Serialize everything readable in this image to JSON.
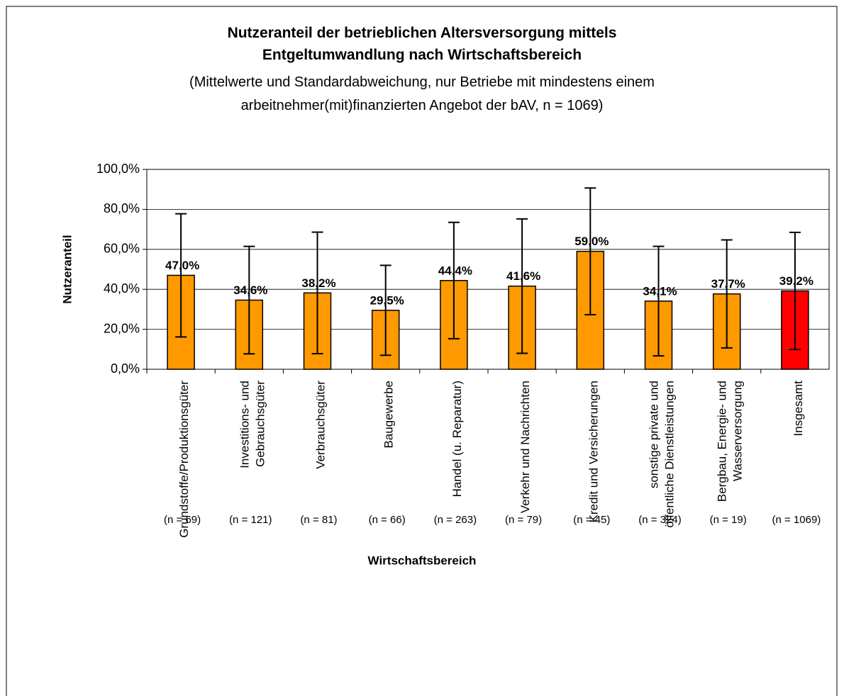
{
  "chart_data": {
    "type": "bar",
    "title": "Nutzeranteil der betrieblichen Altersversorgung mittels\nEntgeltumwandlung nach Wirtschaftsbereich",
    "subtitle": "(Mittelwerte und Standardabweichung, nur Betriebe mit mindestens einem\narbeitnehmer(mit)finanzierten Angebot der bAV, n = 1069)",
    "x_label": "Wirtschaftsbereich",
    "y_label": "Nutzeranteil",
    "categories": [
      "Grundstoffe/Produktionsgüter",
      "Investitions- und\nGebrauchsgüter",
      "Verbrauchsgüter",
      "Baugewerbe",
      "Handel (u. Reparatur)",
      "Verkehr und Nachrichten",
      "Kredit und Versicherungen",
      "sonstige private und\nöffentliche Dienstleistungen",
      "Bergbau, Energie- und\nWasserversorgung",
      "Insgesamt"
    ],
    "sample_sizes": [
      "(n = 69)",
      "(n = 121)",
      "(n = 81)",
      "(n = 66)",
      "(n = 263)",
      "(n = 79)",
      "(n = 45)",
      "(n = 324)",
      "(n = 19)",
      "(n = 1069)"
    ],
    "values": [
      47.0,
      34.6,
      38.2,
      29.5,
      44.4,
      41.6,
      59.0,
      34.1,
      37.7,
      39.2
    ],
    "value_labels": [
      "47,0%",
      "34,6%",
      "38,2%",
      "29,5%",
      "44,4%",
      "41,6%",
      "59,0%",
      "34,1%",
      "37,7%",
      "39,2%"
    ],
    "errors": [
      30.8,
      26.9,
      30.4,
      22.5,
      29.1,
      33.6,
      31.7,
      27.4,
      27.0,
      29.3
    ],
    "colors": [
      "#ff9900",
      "#ff9900",
      "#ff9900",
      "#ff9900",
      "#ff9900",
      "#ff9900",
      "#ff9900",
      "#ff9900",
      "#ff9900",
      "#ff0000"
    ],
    "ylim": [
      0,
      100
    ],
    "yticks": [
      {
        "value": 0,
        "label": "0,0%"
      },
      {
        "value": 20,
        "label": "20,0%"
      },
      {
        "value": 40,
        "label": "40,0%"
      },
      {
        "value": 60,
        "label": "60,0%"
      },
      {
        "value": 80,
        "label": "80,0%"
      },
      {
        "value": 100,
        "label": "100,0%"
      }
    ],
    "grid": true
  }
}
